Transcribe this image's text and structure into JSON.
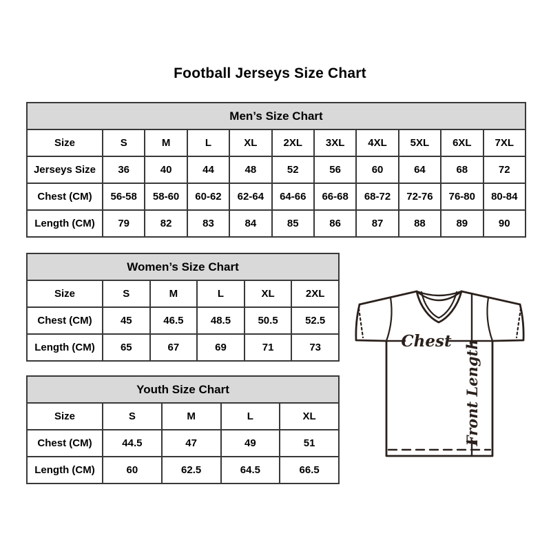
{
  "page": {
    "title": "Football Jerseys Size Chart"
  },
  "tables": {
    "mens": {
      "header": "Men’s Size Chart",
      "rows": [
        [
          "Size",
          "S",
          "M",
          "L",
          "XL",
          "2XL",
          "3XL",
          "4XL",
          "5XL",
          "6XL",
          "7XL"
        ],
        [
          "Jerseys Size",
          "36",
          "40",
          "44",
          "48",
          "52",
          "56",
          "60",
          "64",
          "68",
          "72"
        ],
        [
          "Chest (CM)",
          "56-58",
          "58-60",
          "60-62",
          "62-64",
          "64-66",
          "66-68",
          "68-72",
          "72-76",
          "76-80",
          "80-84"
        ],
        [
          "Length (CM)",
          "79",
          "82",
          "83",
          "84",
          "85",
          "86",
          "87",
          "88",
          "89",
          "90"
        ]
      ]
    },
    "womens": {
      "header": "Women’s Size Chart",
      "rows": [
        [
          "Size",
          "S",
          "M",
          "L",
          "XL",
          "2XL"
        ],
        [
          "Chest (CM)",
          "45",
          "46.5",
          "48.5",
          "50.5",
          "52.5"
        ],
        [
          "Length (CM)",
          "65",
          "67",
          "69",
          "71",
          "73"
        ]
      ]
    },
    "youth": {
      "header": "Youth Size Chart",
      "rows": [
        [
          "Size",
          "S",
          "M",
          "L",
          "XL"
        ],
        [
          "Chest (CM)",
          "44.5",
          "47",
          "49",
          "51"
        ],
        [
          "Length (CM)",
          "60",
          "62.5",
          "64.5",
          "66.5"
        ]
      ]
    }
  },
  "diagram": {
    "chest_label": "Chest",
    "front_length_label": "Front Length",
    "stroke_color": "#2a201c"
  },
  "colors": {
    "table_header_bg": "#d9d9d9",
    "table_border": "#383838",
    "text": "#000000",
    "background": "#ffffff"
  },
  "chart_data": [
    {
      "type": "table",
      "title": "Men's Size Chart",
      "columns": [
        "Size",
        "S",
        "M",
        "L",
        "XL",
        "2XL",
        "3XL",
        "4XL",
        "5XL",
        "6XL",
        "7XL"
      ],
      "rows": [
        [
          "Jerseys Size",
          36,
          40,
          44,
          48,
          52,
          56,
          60,
          64,
          68,
          72
        ],
        [
          "Chest (CM)",
          "56-58",
          "58-60",
          "60-62",
          "62-64",
          "64-66",
          "66-68",
          "68-72",
          "72-76",
          "76-80",
          "80-84"
        ],
        [
          "Length (CM)",
          79,
          82,
          83,
          84,
          85,
          86,
          87,
          88,
          89,
          90
        ]
      ]
    },
    {
      "type": "table",
      "title": "Women's Size Chart",
      "columns": [
        "Size",
        "S",
        "M",
        "L",
        "XL",
        "2XL"
      ],
      "rows": [
        [
          "Chest (CM)",
          45,
          46.5,
          48.5,
          50.5,
          52.5
        ],
        [
          "Length (CM)",
          65,
          67,
          69,
          71,
          73
        ]
      ]
    },
    {
      "type": "table",
      "title": "Youth Size Chart",
      "columns": [
        "Size",
        "S",
        "M",
        "L",
        "XL"
      ],
      "rows": [
        [
          "Chest (CM)",
          44.5,
          47,
          49,
          51
        ],
        [
          "Length (CM)",
          60,
          62.5,
          64.5,
          66.5
        ]
      ]
    }
  ]
}
